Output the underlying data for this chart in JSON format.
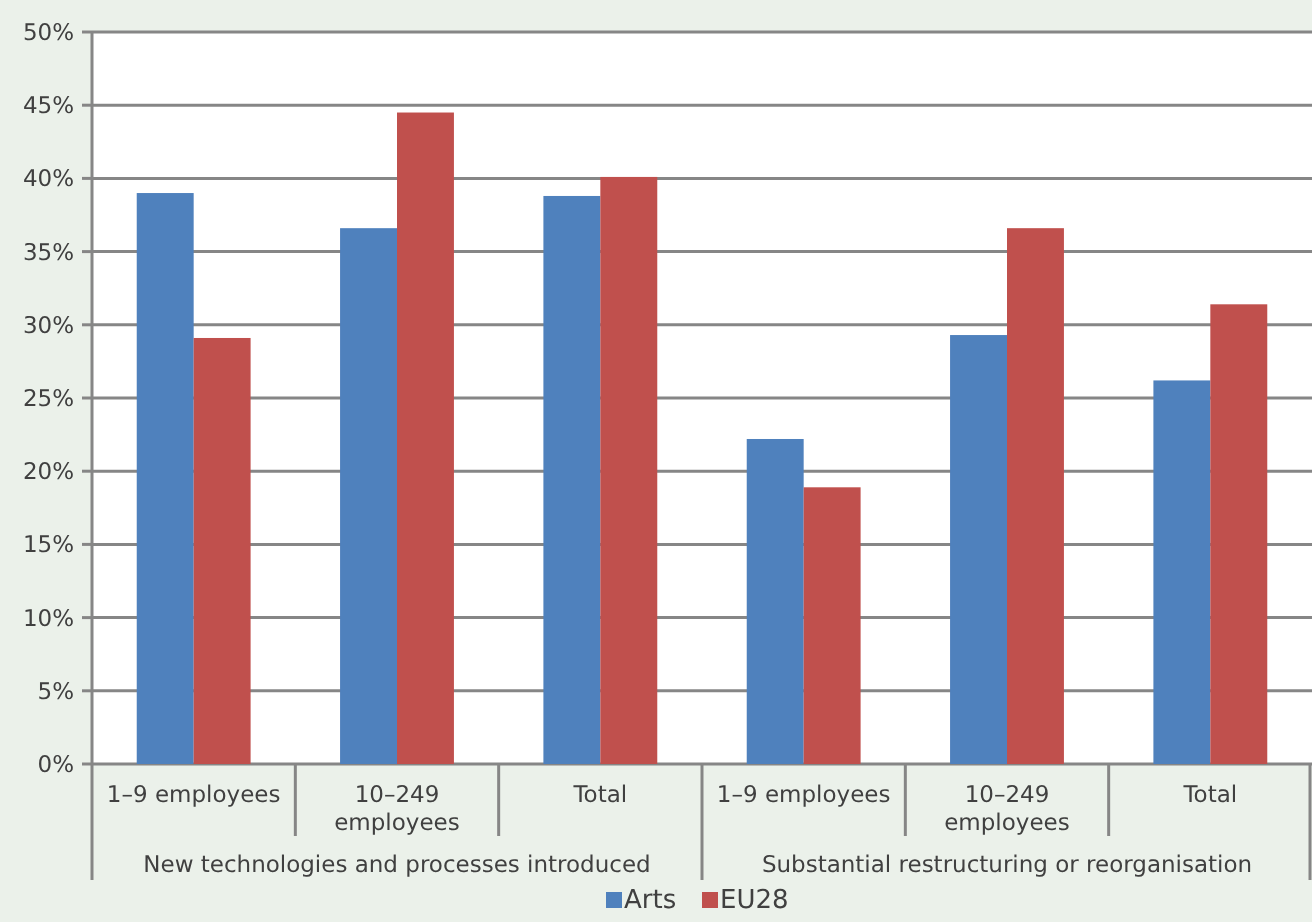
{
  "chart_data": {
    "type": "bar",
    "categories": [
      "1–9 employees",
      "10–249 employees",
      "Total",
      "1–9 employees",
      "10–249 employees",
      "Total"
    ],
    "series": [
      {
        "name": "Arts",
        "color": "#4f81bd",
        "values": [
          39.0,
          36.6,
          38.8,
          22.2,
          29.3,
          26.2
        ]
      },
      {
        "name": "EU28",
        "color": "#c0504d",
        "values": [
          29.1,
          44.5,
          40.1,
          18.9,
          36.6,
          31.4
        ]
      }
    ],
    "ylim": [
      0,
      50
    ],
    "yticks": [
      {
        "value": 0,
        "label": "0%"
      },
      {
        "value": 5,
        "label": "5%"
      },
      {
        "value": 10,
        "label": "10%"
      },
      {
        "value": 15,
        "label": "15%"
      },
      {
        "value": 20,
        "label": "20%"
      },
      {
        "value": 25,
        "label": "25%"
      },
      {
        "value": 30,
        "label": "30%"
      },
      {
        "value": 35,
        "label": "35%"
      },
      {
        "value": 40,
        "label": "40%"
      },
      {
        "value": 45,
        "label": "45%"
      },
      {
        "value": 50,
        "label": "50%"
      }
    ],
    "grid": "y",
    "legend": "bottom",
    "annotations": [
      "New technologies and processes introduced",
      "Substantial restructuring or reorganisation"
    ]
  }
}
